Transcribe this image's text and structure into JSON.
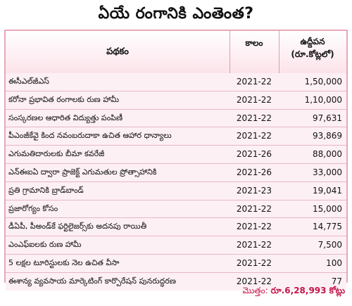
{
  "title": "ఏయే రంగానికి ఎంతెంత?",
  "headers": {
    "scheme": "పథకం",
    "year": "కాలం",
    "amount_line1": "ఉద్దీపన",
    "amount_line2": "(రూ.కోట్లలో)"
  },
  "rows": [
    {
      "scheme": "ఈసీఎల్‌జీఎస్‌",
      "year": "2021-22",
      "amount": "1,50,000"
    },
    {
      "scheme": "కరోనా ప్రభావిత రంగాలకు రుణ హామీ",
      "year": "2021-22",
      "amount": "1,10,000"
    },
    {
      "scheme": "సంస్కరణల ఆధారిత విద్యుత్తు పంపిణీ",
      "year": "2021-22",
      "amount": "97,631"
    },
    {
      "scheme": "పీఎంజీకేవై కింద నవంబరుదాకా ఉచిత ఆహార ధాన్యాలు",
      "year": "2021-22",
      "amount": "93,869"
    },
    {
      "scheme": "ఎగుమతిదారులకు బీమా కవరేజీ",
      "year": "2021-26",
      "amount": "88,000"
    },
    {
      "scheme": "ఎన్‌ఈఐఏ ద్వారా ప్రాజెక్ట్‌ ఎగుమతుల ప్రోత్సాహానికి",
      "year": "2021-26",
      "amount": "33,000"
    },
    {
      "scheme": "ప్రతి గ్రామానికి బ్రాడ్‌బాండ్‌",
      "year": "2021-23",
      "amount": "19,041"
    },
    {
      "scheme": "ప్రజారోగ్యం కోసం",
      "year": "2021-22",
      "amount": "15,000"
    },
    {
      "scheme": "డీఏపీ, పీఅండ్‌కే ఫర్టిలైజర్స్‌కు అదనపు రాయితీ",
      "year": "2021-22",
      "amount": "14,775"
    },
    {
      "scheme": "ఎంఎఫ్‌ఐలకు రుణ హామీ",
      "year": "2021-22",
      "amount": "7,500"
    },
    {
      "scheme": "5 లక్షల టూరిస్టులకు నెల ఉచిత వీసా",
      "year": "2021-22",
      "amount": "100"
    },
    {
      "scheme": "ఈశాన్య వ్యవసాయ మార్కెటింగ్‌ కార్పొరేషన్‌ పునరుద్ధరణ",
      "year": "2021-22",
      "amount": "77"
    }
  ],
  "total": {
    "label": "మొత్తం:",
    "value": "రూ.6,28,993 కోట్లు"
  }
}
